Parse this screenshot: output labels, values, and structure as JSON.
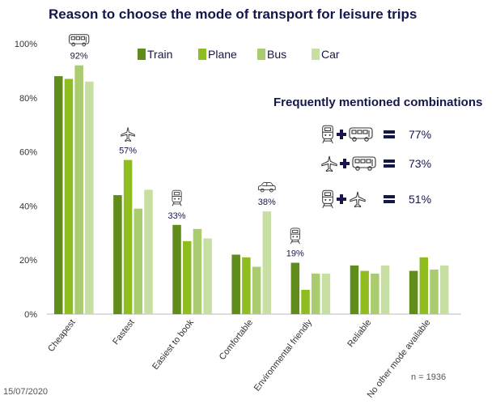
{
  "colors": {
    "Train": "#5f8c1a",
    "Plane": "#8fbc1f",
    "Bus": "#a9cc6e",
    "Car": "#c8dfa3",
    "text": "#15174a"
  },
  "chart_data": {
    "type": "bar",
    "title": "Reason to choose the mode of transport for leisure trips",
    "xlabel": "",
    "ylabel": "",
    "ylim": [
      0,
      100
    ],
    "yticks": [
      "0%",
      "20%",
      "40%",
      "60%",
      "80%",
      "100%"
    ],
    "grid": false,
    "legend_position": "top-center",
    "categories": [
      "Cheapest",
      "Fastest",
      "Easiest to book",
      "Comfortable",
      "Environmental friendly",
      "Reliable",
      "No other mode available"
    ],
    "series": [
      {
        "name": "Train",
        "values": [
          88,
          44,
          33,
          22,
          19,
          18,
          16
        ]
      },
      {
        "name": "Plane",
        "values": [
          87,
          57,
          27,
          21,
          9,
          16,
          21
        ]
      },
      {
        "name": "Bus",
        "values": [
          92,
          39,
          31.5,
          17.5,
          15,
          15,
          16.5
        ]
      },
      {
        "name": "Car",
        "values": [
          86,
          46,
          28,
          38,
          15,
          18,
          18
        ]
      }
    ],
    "annotations": [
      {
        "category": "Cheapest",
        "series": "Bus",
        "label": "92%",
        "icon": "bus-icon"
      },
      {
        "category": "Fastest",
        "series": "Plane",
        "label": "57%",
        "icon": "plane-icon"
      },
      {
        "category": "Easiest to book",
        "series": "Train",
        "label": "33%",
        "icon": "train-icon"
      },
      {
        "category": "Comfortable",
        "series": "Car",
        "label": "38%",
        "icon": "car-icon"
      },
      {
        "category": "Environmental friendly",
        "series": "Train",
        "label": "19%",
        "icon": "train-icon"
      }
    ],
    "combinations": {
      "title": "Frequently mentioned combinations",
      "items": [
        {
          "icons": [
            "train-icon",
            "bus-icon"
          ],
          "value": "77%"
        },
        {
          "icons": [
            "plane-icon",
            "bus-icon"
          ],
          "value": "73%"
        },
        {
          "icons": [
            "train-icon",
            "plane-icon"
          ],
          "value": "51%"
        }
      ]
    },
    "sample_note": "n = 1936",
    "date": "15/07/2020"
  }
}
